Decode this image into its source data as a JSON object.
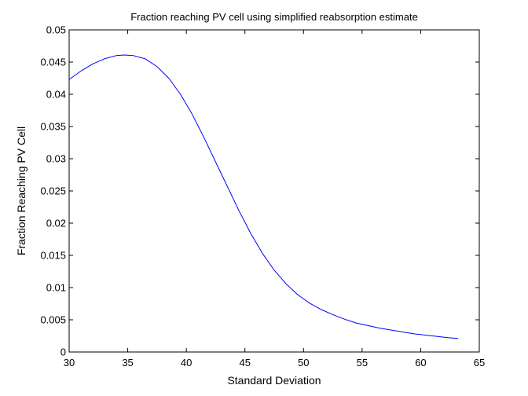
{
  "chart_data": {
    "type": "line",
    "title": "Fraction reaching PV cell using simplified reabsorption estimate",
    "xlabel": "Standard Deviation",
    "ylabel": "Fraction Reaching PV Cell",
    "xlim": [
      30,
      65
    ],
    "ylim": [
      0,
      0.05
    ],
    "xticks": [
      "30",
      "35",
      "40",
      "45",
      "50",
      "55",
      "60",
      "65"
    ],
    "yticks": [
      "0",
      "0.005",
      "0.01",
      "0.015",
      "0.02",
      "0.025",
      "0.03",
      "0.035",
      "0.04",
      "0.045",
      "0.05"
    ],
    "grid": false,
    "line_color": "#0000ff",
    "series": [
      {
        "x": [
          30,
          31,
          32,
          33,
          34,
          34.7,
          35.5,
          36.5,
          37.5,
          38.5,
          39.5,
          40.5,
          41.5,
          42.5,
          43.5,
          44.5,
          45.5,
          46.5,
          47.5,
          48.5,
          49.5,
          50.5,
          51.5,
          52.5,
          53.5,
          54.5,
          55.5,
          56.5,
          57.5,
          58.5,
          59.5,
          60.5,
          61.5,
          62.5,
          63.2
        ],
        "y": [
          0.0423,
          0.0436,
          0.0447,
          0.0455,
          0.046,
          0.0461,
          0.046,
          0.0455,
          0.0443,
          0.0425,
          0.04,
          0.0369,
          0.0333,
          0.0295,
          0.0257,
          0.0219,
          0.0184,
          0.0153,
          0.0127,
          0.0106,
          0.0089,
          0.0076,
          0.0066,
          0.0058,
          0.0051,
          0.0045,
          0.0041,
          0.0037,
          0.0034,
          0.0031,
          0.0028,
          0.0026,
          0.0024,
          0.0022,
          0.0021
        ]
      }
    ]
  }
}
